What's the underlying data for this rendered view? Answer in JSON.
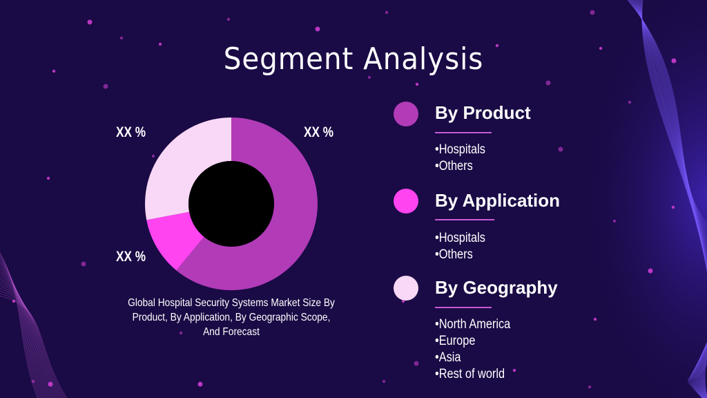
{
  "title": "Segment Analysis",
  "colors": {
    "background": "#1a0a45",
    "slice_large": "#b23bb8",
    "slice_small": "#ff44f0",
    "slice_light": "#f8d8f6"
  },
  "chart_data": {
    "type": "pie",
    "subtype": "donut",
    "slices": [
      {
        "label": "XX %",
        "value": 61,
        "color": "#b23bb8"
      },
      {
        "label": "XX %",
        "value": 11,
        "color": "#ff44f0"
      },
      {
        "label": "XX %",
        "value": 28,
        "color": "#f8d8f6"
      }
    ],
    "caption": "Global Hospital Security Systems Market Size By Product, By Application, By Geographic Scope, And Forecast"
  },
  "segments": [
    {
      "title": "By Product",
      "color": "#b23bb8",
      "items": [
        "Hospitals",
        "Others"
      ]
    },
    {
      "title": "By Application",
      "color": "#ff44f0",
      "items": [
        "Hospitals",
        "Others"
      ]
    },
    {
      "title": "By Geography",
      "color": "#f8d8f6",
      "items": [
        "North America",
        "Europe",
        "Asia",
        "Rest of world"
      ]
    }
  ]
}
